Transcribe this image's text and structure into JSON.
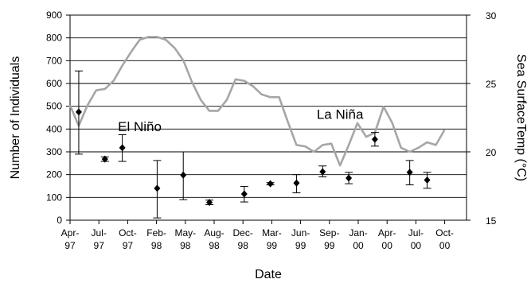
{
  "chart_data": {
    "type": "line",
    "xlabel": "Date",
    "ylabel": "Number of Individuals",
    "y2label": "Sea SurfaceTemp (°C)",
    "ylim": [
      0,
      900
    ],
    "y2lim": [
      15,
      30
    ],
    "yticks": [
      0,
      100,
      200,
      300,
      400,
      500,
      600,
      700,
      800,
      900
    ],
    "y2ticks": [
      15,
      20,
      25,
      30
    ],
    "grid": "horizontal",
    "x_tick_labels": [
      [
        "Apr-",
        "97"
      ],
      [
        "Jul-",
        "97"
      ],
      [
        "Oct-",
        "97"
      ],
      [
        "Feb-",
        "98"
      ],
      [
        "May-",
        "98"
      ],
      [
        "Aug-",
        "98"
      ],
      [
        "Dec-",
        "98"
      ],
      [
        "Mar-",
        "99"
      ],
      [
        "Jun-",
        "99"
      ],
      [
        "Sep-",
        "99"
      ],
      [
        "Jan-",
        "00"
      ],
      [
        "Apr-",
        "00"
      ],
      [
        "Jul-",
        "00"
      ],
      [
        "Oct-",
        "00"
      ]
    ],
    "annotations": [
      {
        "text": "El Niño",
        "x": "Dec-97",
        "y": 21.5
      },
      {
        "text": "La Niña",
        "x": "Nov-99",
        "y": 22.4
      }
    ],
    "series": [
      {
        "axis": "right",
        "style": "line",
        "color": "#a6a6a6",
        "x": [
          "Apr-97",
          "May-97",
          "Jun-97",
          "Jul-97",
          "Aug-97",
          "Sep-97",
          "Oct-97",
          "Nov-97",
          "Dec-97",
          "Jan-98",
          "Feb-98",
          "Mar-98",
          "Apr-98",
          "May-98",
          "Jun-98",
          "Jul-98",
          "Aug-98",
          "Sep-98",
          "Oct-98",
          "Nov-98",
          "Dec-98",
          "Jan-99",
          "Feb-99",
          "Mar-99",
          "Apr-99",
          "May-99",
          "Jun-99",
          "Jul-99",
          "Aug-99",
          "Sep-99",
          "Oct-99",
          "Nov-99",
          "Dec-99",
          "Jan-00",
          "Feb-00",
          "Mar-00",
          "Apr-00",
          "May-00",
          "Jun-00",
          "Jul-00",
          "Aug-00",
          "Sep-00",
          "Oct-00",
          "Nov-00"
        ],
        "values": [
          23.4,
          21.9,
          23.4,
          24.5,
          24.6,
          25.2,
          26.3,
          27.3,
          28.2,
          28.4,
          28.4,
          28.2,
          27.6,
          26.7,
          25.1,
          23.8,
          23.0,
          23.0,
          23.8,
          25.3,
          25.2,
          24.8,
          24.2,
          24.0,
          24.0,
          22.2,
          20.5,
          20.4,
          20.0,
          20.5,
          20.6,
          19.0,
          20.5,
          22.1,
          21.1,
          21.4,
          23.3,
          22.1,
          20.3,
          20.0,
          20.3,
          20.7,
          20.5,
          21.6
        ]
      },
      {
        "axis": "left",
        "style": "points",
        "color": "#000000",
        "x": [
          "May-97",
          "Aug-97",
          "Oct-97",
          "Feb-98",
          "May-98",
          "Aug-98",
          "Dec-98",
          "Mar-99",
          "Jun-99",
          "Sep-99",
          "Dec-99",
          "Mar-00",
          "Jul-00",
          "Sep-00"
        ],
        "values": [
          475,
          268,
          318,
          140,
          198,
          78,
          115,
          160,
          163,
          213,
          185,
          355,
          210,
          176
        ],
        "error_low": [
          290,
          258,
          258,
          10,
          90,
          68,
          80,
          155,
          120,
          190,
          160,
          325,
          155,
          140
        ],
        "error_high": [
          655,
          278,
          375,
          262,
          300,
          88,
          148,
          165,
          200,
          238,
          210,
          385,
          262,
          210
        ]
      }
    ]
  }
}
